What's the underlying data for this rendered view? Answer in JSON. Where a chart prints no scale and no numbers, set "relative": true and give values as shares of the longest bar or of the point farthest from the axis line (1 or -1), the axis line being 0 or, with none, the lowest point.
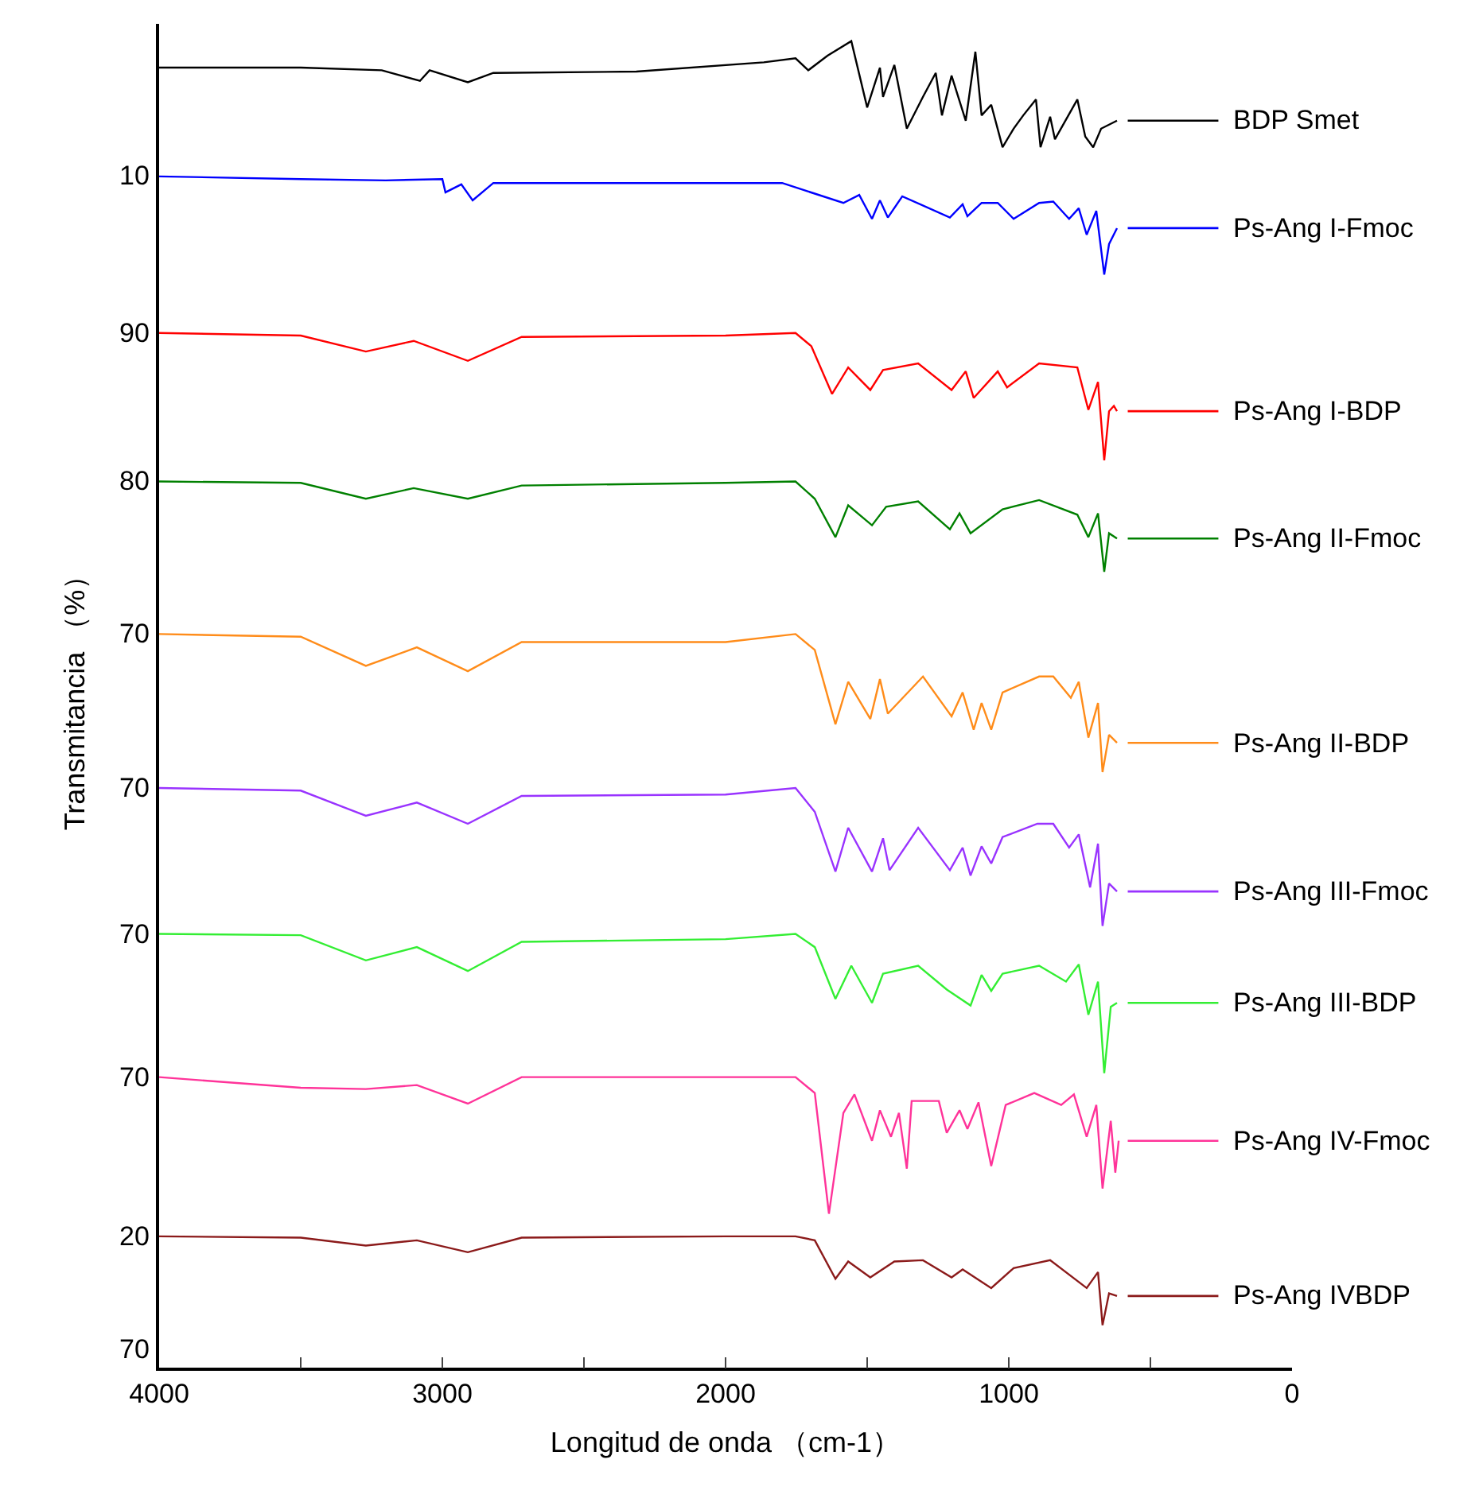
{
  "chart_data": {
    "type": "line",
    "xlabel": "Longitud de onda （cm-1）",
    "ylabel": "Transmitancia （%）",
    "xlim": [
      4000,
      0
    ],
    "xticks": [
      4000,
      {
        "value": 3500,
        "label": null
      },
      3000,
      {
        "value": 2500,
        "label": null
      },
      2000,
      {
        "value": 1500,
        "label": null
      },
      1000,
      {
        "value": 500,
        "label": null
      },
      0
    ],
    "relative": true,
    "annotations": [
      "10",
      "90",
      "80",
      "70",
      "70",
      "70",
      "70",
      "20",
      "70"
    ],
    "legend": "right",
    "marker": "none",
    "line_style": "solid",
    "series": [
      {
        "name": "BDP Smet",
        "color": "#000000",
        "x": [
          4000,
          3500,
          3214,
          3079,
          3045,
          2910,
          2820,
          2315,
          1865,
          1753,
          1708,
          1640,
          1556,
          1500,
          1455,
          1444,
          1404,
          1360,
          1303,
          1258,
          1236,
          1202,
          1152,
          1118,
          1096,
          1062,
          1022,
          983,
          949,
          904,
          888,
          854,
          837,
          758,
          730,
          702,
          674,
          618
        ],
        "values": [
          0.98,
          0.98,
          0.978,
          0.97,
          0.978,
          0.969,
          0.976,
          0.977,
          0.984,
          0.987,
          0.978,
          0.989,
          1,
          0.95,
          0.98,
          0.958,
          0.982,
          0.934,
          0.958,
          0.976,
          0.944,
          0.974,
          0.94,
          0.992,
          0.944,
          0.952,
          0.92,
          0.934,
          0.944,
          0.956,
          0.92,
          0.943,
          0.926,
          0.956,
          0.928,
          0.92,
          0.934,
          0.94
        ]
      },
      {
        "name": "Ps-Ang I-Fmoc",
        "color": "#0000ff",
        "x": [
          4000,
          3500,
          3200,
          3000,
          2989,
          2933,
          2893,
          2820,
          2500,
          2000,
          1800,
          1584,
          1528,
          1483,
          1455,
          1427,
          1376,
          1208,
          1163,
          1146,
          1096,
          1039,
          983,
          893,
          843,
          787,
          753,
          725,
          691,
          663,
          646,
          618
        ],
        "values": [
          0.898,
          0.896,
          0.895,
          0.896,
          0.886,
          0.892,
          0.88,
          0.893,
          0.893,
          0.893,
          0.893,
          0.878,
          0.884,
          0.866,
          0.88,
          0.867,
          0.883,
          0.867,
          0.877,
          0.868,
          0.878,
          0.878,
          0.866,
          0.878,
          0.879,
          0.866,
          0.874,
          0.854,
          0.872,
          0.824,
          0.847,
          0.859
        ]
      },
      {
        "name": "Ps-Ang I-BDP",
        "color": "#ff0000",
        "x": [
          4000,
          3500,
          3270,
          3101,
          2910,
          2720,
          2000,
          1753,
          1697,
          1624,
          1567,
          1489,
          1444,
          1320,
          1202,
          1152,
          1124,
          1039,
          1006,
          893,
          758,
          719,
          685,
          663,
          646,
          629,
          618
        ],
        "values": [
          0.78,
          0.778,
          0.766,
          0.774,
          0.759,
          0.777,
          0.778,
          0.78,
          0.77,
          0.734,
          0.754,
          0.737,
          0.752,
          0.757,
          0.737,
          0.751,
          0.731,
          0.751,
          0.739,
          0.757,
          0.754,
          0.722,
          0.743,
          0.684,
          0.721,
          0.725,
          0.721
        ]
      },
      {
        "name": "Ps-Ang II-Fmoc",
        "color": "#008000",
        "x": [
          4000,
          3500,
          3270,
          3101,
          2910,
          2720,
          2000,
          1753,
          1685,
          1612,
          1567,
          1483,
          1433,
          1320,
          1208,
          1174,
          1135,
          1022,
          893,
          758,
          719,
          685,
          663,
          646,
          618
        ],
        "values": [
          0.668,
          0.667,
          0.655,
          0.663,
          0.655,
          0.665,
          0.667,
          0.668,
          0.655,
          0.626,
          0.65,
          0.635,
          0.649,
          0.653,
          0.632,
          0.644,
          0.629,
          0.647,
          0.654,
          0.643,
          0.626,
          0.644,
          0.6,
          0.629,
          0.625
        ]
      },
      {
        "name": "Ps-Ang II-BDP",
        "color": "#ff8c1a",
        "x": [
          4000,
          3500,
          3270,
          3090,
          2910,
          2720,
          2000,
          1753,
          1685,
          1612,
          1567,
          1489,
          1455,
          1427,
          1303,
          1202,
          1163,
          1124,
          1096,
          1062,
          1022,
          893,
          843,
          781,
          753,
          719,
          685,
          669,
          646,
          618
        ],
        "values": [
          0.553,
          0.551,
          0.529,
          0.543,
          0.525,
          0.547,
          0.547,
          0.553,
          0.541,
          0.485,
          0.517,
          0.489,
          0.519,
          0.493,
          0.521,
          0.491,
          0.509,
          0.481,
          0.501,
          0.481,
          0.509,
          0.521,
          0.521,
          0.505,
          0.517,
          0.475,
          0.501,
          0.449,
          0.477,
          0.471
        ]
      },
      {
        "name": "Ps-Ang III-Fmoc",
        "color": "#9933ff",
        "x": [
          4000,
          3500,
          3270,
          3090,
          2910,
          2720,
          2000,
          1753,
          1685,
          1612,
          1567,
          1483,
          1444,
          1421,
          1320,
          1208,
          1163,
          1135,
          1096,
          1062,
          1022,
          899,
          843,
          787,
          753,
          713,
          685,
          669,
          646,
          618
        ],
        "values": [
          0.437,
          0.435,
          0.416,
          0.426,
          0.41,
          0.431,
          0.432,
          0.437,
          0.419,
          0.374,
          0.407,
          0.374,
          0.399,
          0.375,
          0.407,
          0.375,
          0.392,
          0.371,
          0.393,
          0.38,
          0.4,
          0.41,
          0.41,
          0.392,
          0.402,
          0.362,
          0.395,
          0.333,
          0.365,
          0.359
        ]
      },
      {
        "name": "Ps-Ang III-BDP",
        "color": "#33ee33",
        "x": [
          4000,
          3500,
          3270,
          3090,
          2910,
          2720,
          2000,
          1753,
          1685,
          1612,
          1556,
          1483,
          1444,
          1320,
          1219,
          1135,
          1096,
          1062,
          1022,
          893,
          798,
          753,
          719,
          685,
          663,
          640,
          618
        ],
        "values": [
          0.327,
          0.326,
          0.307,
          0.317,
          0.299,
          0.321,
          0.323,
          0.327,
          0.317,
          0.278,
          0.303,
          0.275,
          0.297,
          0.303,
          0.285,
          0.273,
          0.296,
          0.284,
          0.297,
          0.303,
          0.291,
          0.304,
          0.266,
          0.291,
          0.222,
          0.272,
          0.275
        ]
      },
      {
        "name": "Ps-Ang IV-Fmoc",
        "color": "#ff3399",
        "x": [
          4000,
          3500,
          3270,
          3090,
          2910,
          2720,
          2000,
          1753,
          1685,
          1635,
          1584,
          1545,
          1483,
          1455,
          1416,
          1388,
          1360,
          1343,
          1247,
          1219,
          1174,
          1146,
          1107,
          1062,
          1011,
          910,
          815,
          770,
          725,
          691,
          669,
          640,
          624,
          612
        ],
        "values": [
          0.219,
          0.211,
          0.21,
          0.213,
          0.199,
          0.219,
          0.219,
          0.219,
          0.207,
          0.116,
          0.192,
          0.206,
          0.171,
          0.194,
          0.174,
          0.192,
          0.15,
          0.201,
          0.201,
          0.177,
          0.194,
          0.18,
          0.2,
          0.152,
          0.198,
          0.207,
          0.198,
          0.206,
          0.174,
          0.198,
          0.135,
          0.186,
          0.147,
          0.171
        ]
      },
      {
        "name": "Ps-Ang IVBDP",
        "color": "#8b1a1a",
        "x": [
          4000,
          3500,
          3270,
          3090,
          2910,
          2720,
          2000,
          1753,
          1685,
          1612,
          1567,
          1489,
          1404,
          1303,
          1202,
          1163,
          1062,
          983,
          854,
          725,
          685,
          669,
          646,
          618
        ],
        "values": [
          0.099,
          0.098,
          0.092,
          0.096,
          0.087,
          0.098,
          0.099,
          0.099,
          0.096,
          0.067,
          0.08,
          0.068,
          0.08,
          0.081,
          0.068,
          0.074,
          0.06,
          0.075,
          0.081,
          0.06,
          0.072,
          0.032,
          0.056,
          0.054
        ]
      }
    ]
  }
}
